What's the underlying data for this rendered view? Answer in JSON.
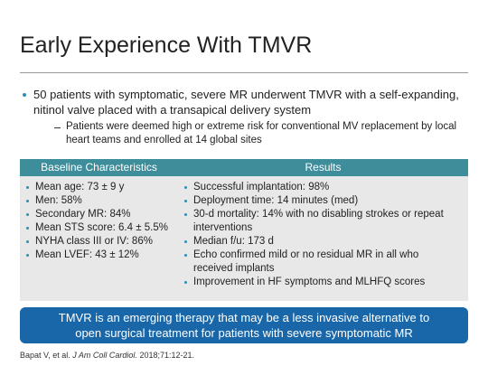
{
  "header": {
    "title": "Early Experience With TMVR"
  },
  "bullets": [
    {
      "text": "50 patients with symptomatic, severe MR underwent TMVR with a self-expanding, nitinol valve placed with a transapical delivery system",
      "sub_bullets": [
        "Patients were deemed high or extreme risk for conventional MV replacement by local heart teams and enrolled at 14 global sites"
      ]
    }
  ],
  "table": {
    "headers": [
      "Baseline Characteristics",
      "Results"
    ],
    "columns": [
      [
        "Mean age: 73 ± 9 y",
        "Men: 58%",
        "Secondary MR: 84%",
        "Mean STS score: 6.4 ± 5.5%",
        "NYHA class III or IV: 86%",
        "Mean LVEF: 43 ± 12%"
      ],
      [
        "Successful implantation: 98%",
        "Deployment time: 14 minutes (med)",
        "30-d mortality: 14% with no disabling strokes or repeat interventions",
        "Median f/u: 173 d",
        "Echo confirmed mild or no residual MR in all who received implants",
        "Improvement in HF symptoms and MLHFQ scores"
      ]
    ]
  },
  "callout": {
    "text": "TMVR is an emerging therapy that may be a less invasive alternative to open surgical treatment for patients with severe symptomatic MR"
  },
  "citation": {
    "authors": "Bapat V, et al.",
    "journal": "J Am Coll Cardiol.",
    "details": "2018;71:12-21."
  }
}
